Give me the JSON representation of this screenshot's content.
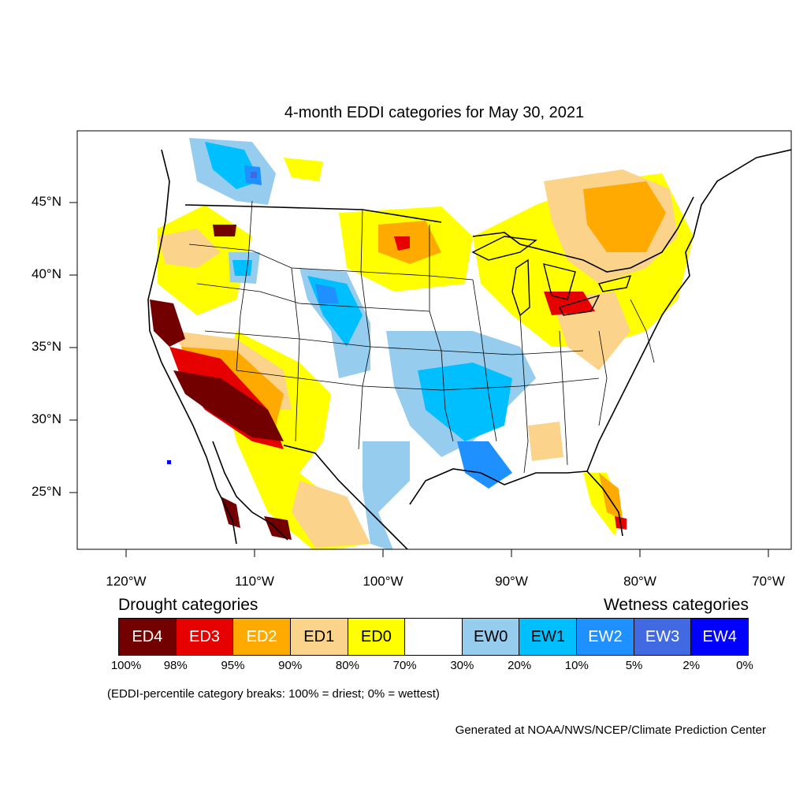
{
  "title": "4-month EDDI categories for May 30, 2021",
  "lat_labels": [
    "45°N",
    "40°N",
    "35°N",
    "30°N",
    "25°N"
  ],
  "lon_labels": [
    "120°W",
    "110°W",
    "100°W",
    "90°W",
    "80°W",
    "70°W"
  ],
  "legend": {
    "drought_heading": "Drought categories",
    "wetness_heading": "Wetness categories",
    "categories": [
      {
        "label": "ED4",
        "color": "#730000",
        "text_color": "#ffffff"
      },
      {
        "label": "ED3",
        "color": "#e60000",
        "text_color": "#ffffff"
      },
      {
        "label": "ED2",
        "color": "#ffaa00",
        "text_color": "#ffffff"
      },
      {
        "label": "ED1",
        "color": "#fcd38a",
        "text_color": "#000000"
      },
      {
        "label": "ED0",
        "color": "#ffff00",
        "text_color": "#000000"
      },
      {
        "label": "",
        "color": "#ffffff",
        "text_color": "#000000"
      },
      {
        "label": "EW0",
        "color": "#96cdee",
        "text_color": "#000000"
      },
      {
        "label": "EW1",
        "color": "#00bfff",
        "text_color": "#000000"
      },
      {
        "label": "EW2",
        "color": "#1e90ff",
        "text_color": "#ffffff"
      },
      {
        "label": "EW3",
        "color": "#4169e1",
        "text_color": "#ffffff"
      },
      {
        "label": "EW4",
        "color": "#0000ff",
        "text_color": "#ffffff"
      }
    ],
    "breaks": [
      "100%",
      "98%",
      "95%",
      "90%",
      "80%",
      "70%",
      "30%",
      "20%",
      "10%",
      "5%",
      "2%",
      "0%"
    ]
  },
  "note": "(EDDI-percentile category breaks: 100% = driest; 0% = wettest)",
  "credit": "Generated at NOAA/NWS/NCEP/Climate Prediction Center"
}
